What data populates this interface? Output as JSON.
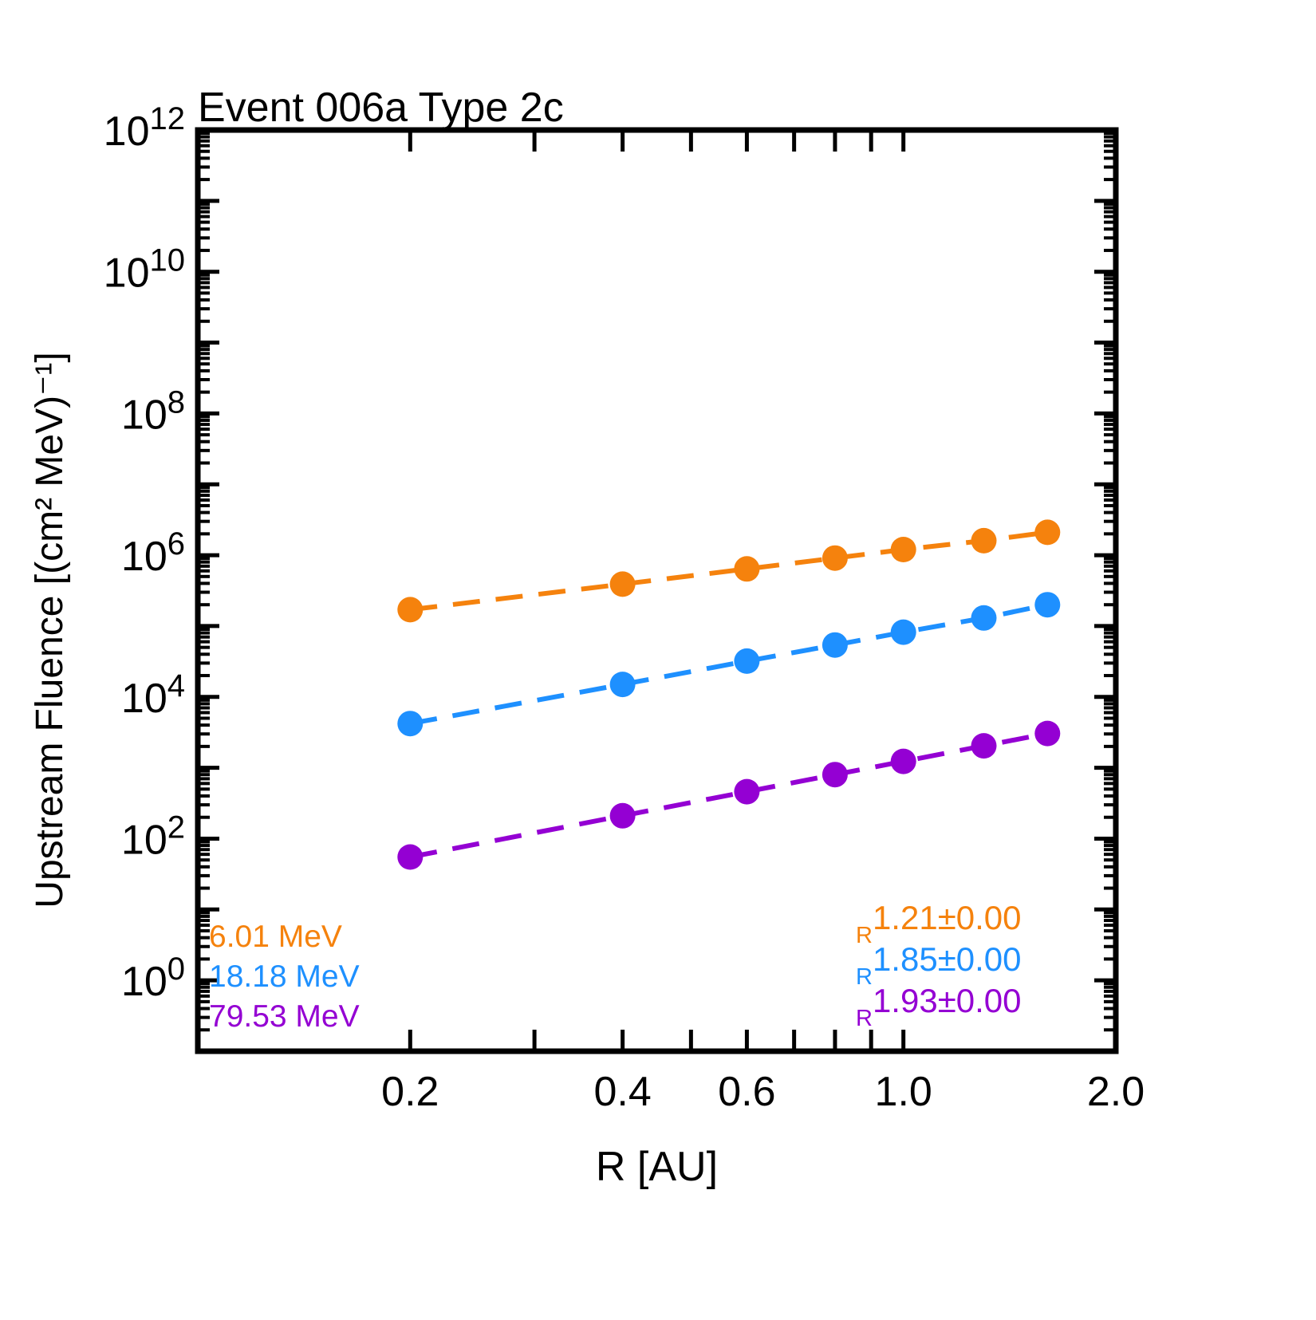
{
  "title": "Event 006a Type 2c",
  "x_axis": {
    "label": "R [AU]",
    "scale": "log",
    "range": [
      0.1,
      2.0
    ],
    "tick_values": [
      0.2,
      0.4,
      0.6,
      1.0,
      2.0
    ],
    "tick_labels": [
      "0.2",
      "0.4",
      "0.6",
      "1.0",
      "2.0"
    ],
    "all_tick_marks": [
      0.2,
      0.3,
      0.4,
      0.5,
      0.6,
      0.7,
      0.8,
      0.9,
      1.0
    ]
  },
  "y_axis": {
    "label": "Upstream Fluence [(cm² MeV)⁻¹]",
    "scale": "log",
    "base": "10",
    "range_exponents": [
      -1,
      12
    ],
    "labeled_exponents": [
      0,
      2,
      4,
      6,
      8,
      10,
      12
    ]
  },
  "chart_data": {
    "type": "scatter",
    "title": "Event 006a Type 2c",
    "xlabel": "R [AU]",
    "ylabel": "Upstream Fluence [(cm² MeV)⁻¹]",
    "x_scale": "log",
    "y_scale": "log",
    "xlim": [
      0.1,
      2.0
    ],
    "ylim": [
      0.1,
      1000000000000.0
    ],
    "grid": false,
    "line_style": "dashed",
    "marker": "circle",
    "x": [
      0.2,
      0.4,
      0.6,
      0.8,
      1.0,
      1.3,
      1.6
    ],
    "series": [
      {
        "name": "6.01 MeV",
        "color": "#F5820D",
        "fit_base": "R",
        "fit_exponent": "1.21±0.00",
        "values": [
          170000,
          390000,
          640000,
          910000,
          1200000,
          1600000,
          2100000
        ]
      },
      {
        "name": "18.18 MeV",
        "color": "#1E90FF",
        "fit_base": "R",
        "fit_exponent": "1.85±0.00",
        "values": [
          4200,
          15000,
          32000,
          54000,
          82000,
          130000,
          200000
        ]
      },
      {
        "name": "79.53 MeV",
        "color": "#9400D3",
        "fit_base": "R",
        "fit_exponent": "1.93±0.00",
        "values": [
          55,
          210,
          460,
          800,
          1230,
          2040,
          3050
        ]
      }
    ],
    "legend_position": {
      "energies": "lower-left",
      "fit_exponents": "lower-right"
    }
  }
}
